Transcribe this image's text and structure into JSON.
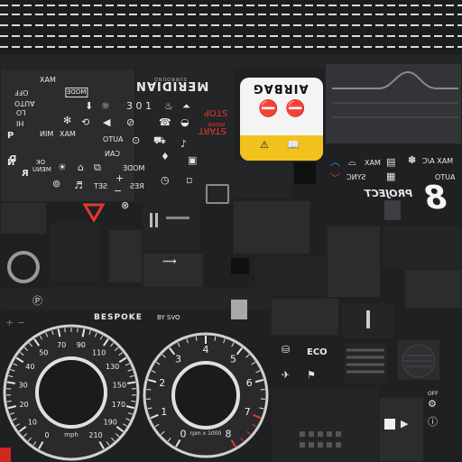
{
  "sheet": {
    "top_label": "",
    "left_controls": [
      "MAX",
      "OFF",
      "AUTO",
      "LO",
      "HI",
      "MODE",
      "MIN",
      "MAX",
      "AUTO",
      "CAN",
      "MODE",
      "OK",
      "MENU",
      "SET",
      "RES"
    ],
    "left_letters": [
      "P",
      "R",
      "N",
      "D",
      "MAX",
      "OFF",
      "AUTO",
      "LO",
      "HI",
      "OK"
    ],
    "brand": {
      "title": "MERIDIAN",
      "subtitle": "SURROUND"
    },
    "start_stop": {
      "top": "STOP",
      "middle": "ENGINE",
      "bottom": "START"
    },
    "airbag": {
      "label": "AIRBAG"
    },
    "climate": {
      "max_label": "MAX",
      "sync_label": "SYNC",
      "max_ac_label": "MAX A/C",
      "auto_label": "AUTO"
    },
    "model_badge": {
      "label": "PROJECT",
      "number": "8"
    },
    "speedo": {
      "brand_title": "BESPOKE",
      "brand_sub": "BY SVO",
      "unit": "mph",
      "ticks": [
        "0",
        "10",
        "20",
        "30",
        "40",
        "50",
        "70",
        "90",
        "110",
        "130",
        "150",
        "170",
        "190",
        "210"
      ]
    },
    "tacho": {
      "unit": "rpm x 1000",
      "ticks": [
        "0",
        "1",
        "2",
        "3",
        "4",
        "5",
        "6",
        "7",
        "8"
      ]
    },
    "eco_label": "ECO",
    "off_label": "OFF",
    "colors": {
      "background": "#1f2022",
      "panel": "#2b2c2e",
      "accent_red": "#e23a2e",
      "airbag_yellow": "#f2c21c",
      "climate_blue": "#3b8fe6"
    }
  }
}
